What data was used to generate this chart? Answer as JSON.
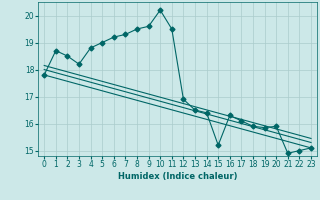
{
  "xlabel": "Humidex (Indice chaleur)",
  "background_color": "#cce8e8",
  "line_color": "#006666",
  "grid_color": "#aacccc",
  "xlim": [
    -0.5,
    23.5
  ],
  "ylim": [
    14.8,
    20.5
  ],
  "yticks": [
    15,
    16,
    17,
    18,
    19,
    20
  ],
  "xticks": [
    0,
    1,
    2,
    3,
    4,
    5,
    6,
    7,
    8,
    9,
    10,
    11,
    12,
    13,
    14,
    15,
    16,
    17,
    18,
    19,
    20,
    21,
    22,
    23
  ],
  "series1_x": [
    0,
    1,
    2,
    3,
    4,
    5,
    6,
    7,
    8,
    9,
    10,
    11,
    12,
    13,
    14,
    15,
    16,
    17,
    18,
    19,
    20,
    21,
    22,
    23
  ],
  "series1_y": [
    17.8,
    18.7,
    18.5,
    18.2,
    18.8,
    19.0,
    19.2,
    19.3,
    19.5,
    19.6,
    20.2,
    19.5,
    16.9,
    16.5,
    16.4,
    15.2,
    16.3,
    16.1,
    15.9,
    15.85,
    15.9,
    14.9,
    15.0,
    15.1
  ],
  "trend1_x": [
    0,
    23
  ],
  "trend1_y": [
    17.8,
    15.1
  ],
  "trend2_x": [
    0,
    23
  ],
  "trend2_y": [
    18.0,
    15.3
  ],
  "trend3_x": [
    0,
    23
  ],
  "trend3_y": [
    18.15,
    15.45
  ],
  "marker": "D",
  "markersize": 2.5,
  "linewidth": 0.8,
  "xlabel_fontsize": 6,
  "tick_fontsize": 5.5
}
